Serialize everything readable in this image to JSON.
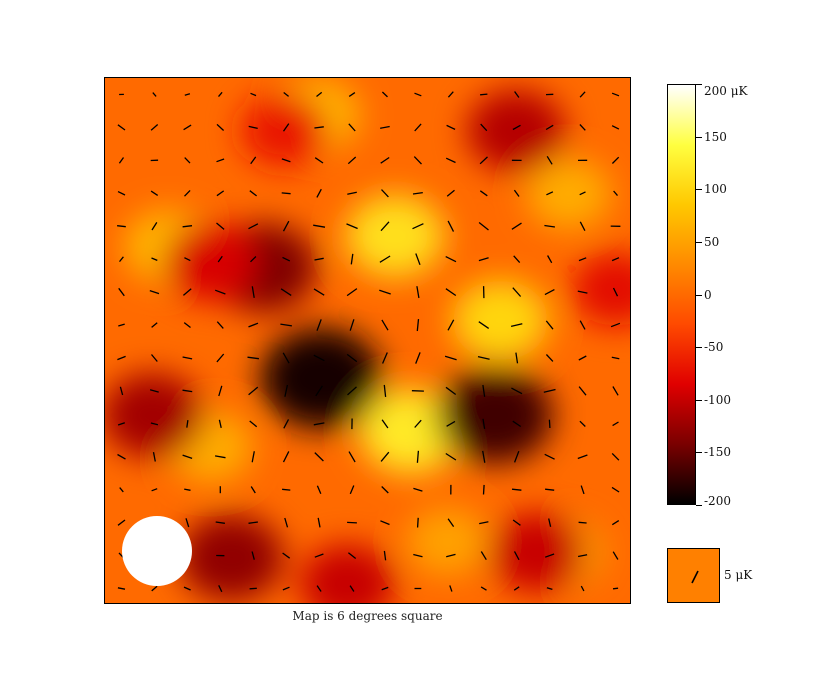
{
  "chart_data": {
    "type": "heatmap",
    "title": "",
    "xlabel": "Map is 6 degrees square",
    "ylabel": "",
    "colorbar": {
      "unit_label": "200 μK",
      "tick_labels": [
        "200 μK",
        "150",
        "100",
        "50",
        "0",
        "-50",
        "-100",
        "-150",
        "-200"
      ],
      "tick_values": [
        200,
        150,
        100,
        50,
        0,
        -50,
        -100,
        -150,
        -200
      ],
      "range": [
        -200,
        200
      ],
      "colormap": [
        "#000000",
        "#7a0000",
        "#e00000",
        "#ff4a00",
        "#ff8a00",
        "#ffc800",
        "#ffff40",
        "#ffffff"
      ]
    },
    "polarization_scale_label": "5 μK",
    "beam_marker": "white disc (beam size)",
    "temperature_features": [
      {
        "x": 0.55,
        "y": 0.3,
        "value": 110
      },
      {
        "x": 0.4,
        "y": 0.07,
        "value": 70
      },
      {
        "x": 0.88,
        "y": 0.22,
        "value": 60
      },
      {
        "x": 0.12,
        "y": 0.32,
        "value": 70
      },
      {
        "x": 0.75,
        "y": 0.46,
        "value": 100
      },
      {
        "x": 0.58,
        "y": 0.67,
        "value": 120
      },
      {
        "x": 0.2,
        "y": 0.7,
        "value": 60
      },
      {
        "x": 0.65,
        "y": 0.88,
        "value": 50
      },
      {
        "x": 0.87,
        "y": 0.9,
        "value": 50
      },
      {
        "x": 0.3,
        "y": 0.36,
        "value": -140
      },
      {
        "x": 0.41,
        "y": 0.57,
        "value": -190
      },
      {
        "x": 0.74,
        "y": 0.64,
        "value": -170
      },
      {
        "x": 0.09,
        "y": 0.64,
        "value": -120
      },
      {
        "x": 0.24,
        "y": 0.91,
        "value": -130
      },
      {
        "x": 0.46,
        "y": 0.96,
        "value": -100
      },
      {
        "x": 0.78,
        "y": 0.1,
        "value": -110
      },
      {
        "x": 0.97,
        "y": 0.4,
        "value": -80
      },
      {
        "x": 0.82,
        "y": 0.9,
        "value": -100
      },
      {
        "x": 0.34,
        "y": 0.1,
        "value": -70
      },
      {
        "x": 0.2,
        "y": 0.35,
        "value": -90
      }
    ],
    "polarization": {
      "grid": [
        16,
        16
      ],
      "range_x": [
        0,
        1
      ],
      "range_y": [
        0,
        1
      ],
      "scale_uK": 5,
      "sources": [
        {
          "x": 0.58,
          "y": 0.38,
          "strength": 1
        },
        {
          "x": 0.41,
          "y": 0.57,
          "strength": 0.8
        },
        {
          "x": 0.74,
          "y": 0.64,
          "strength": 0.5
        }
      ]
    }
  }
}
